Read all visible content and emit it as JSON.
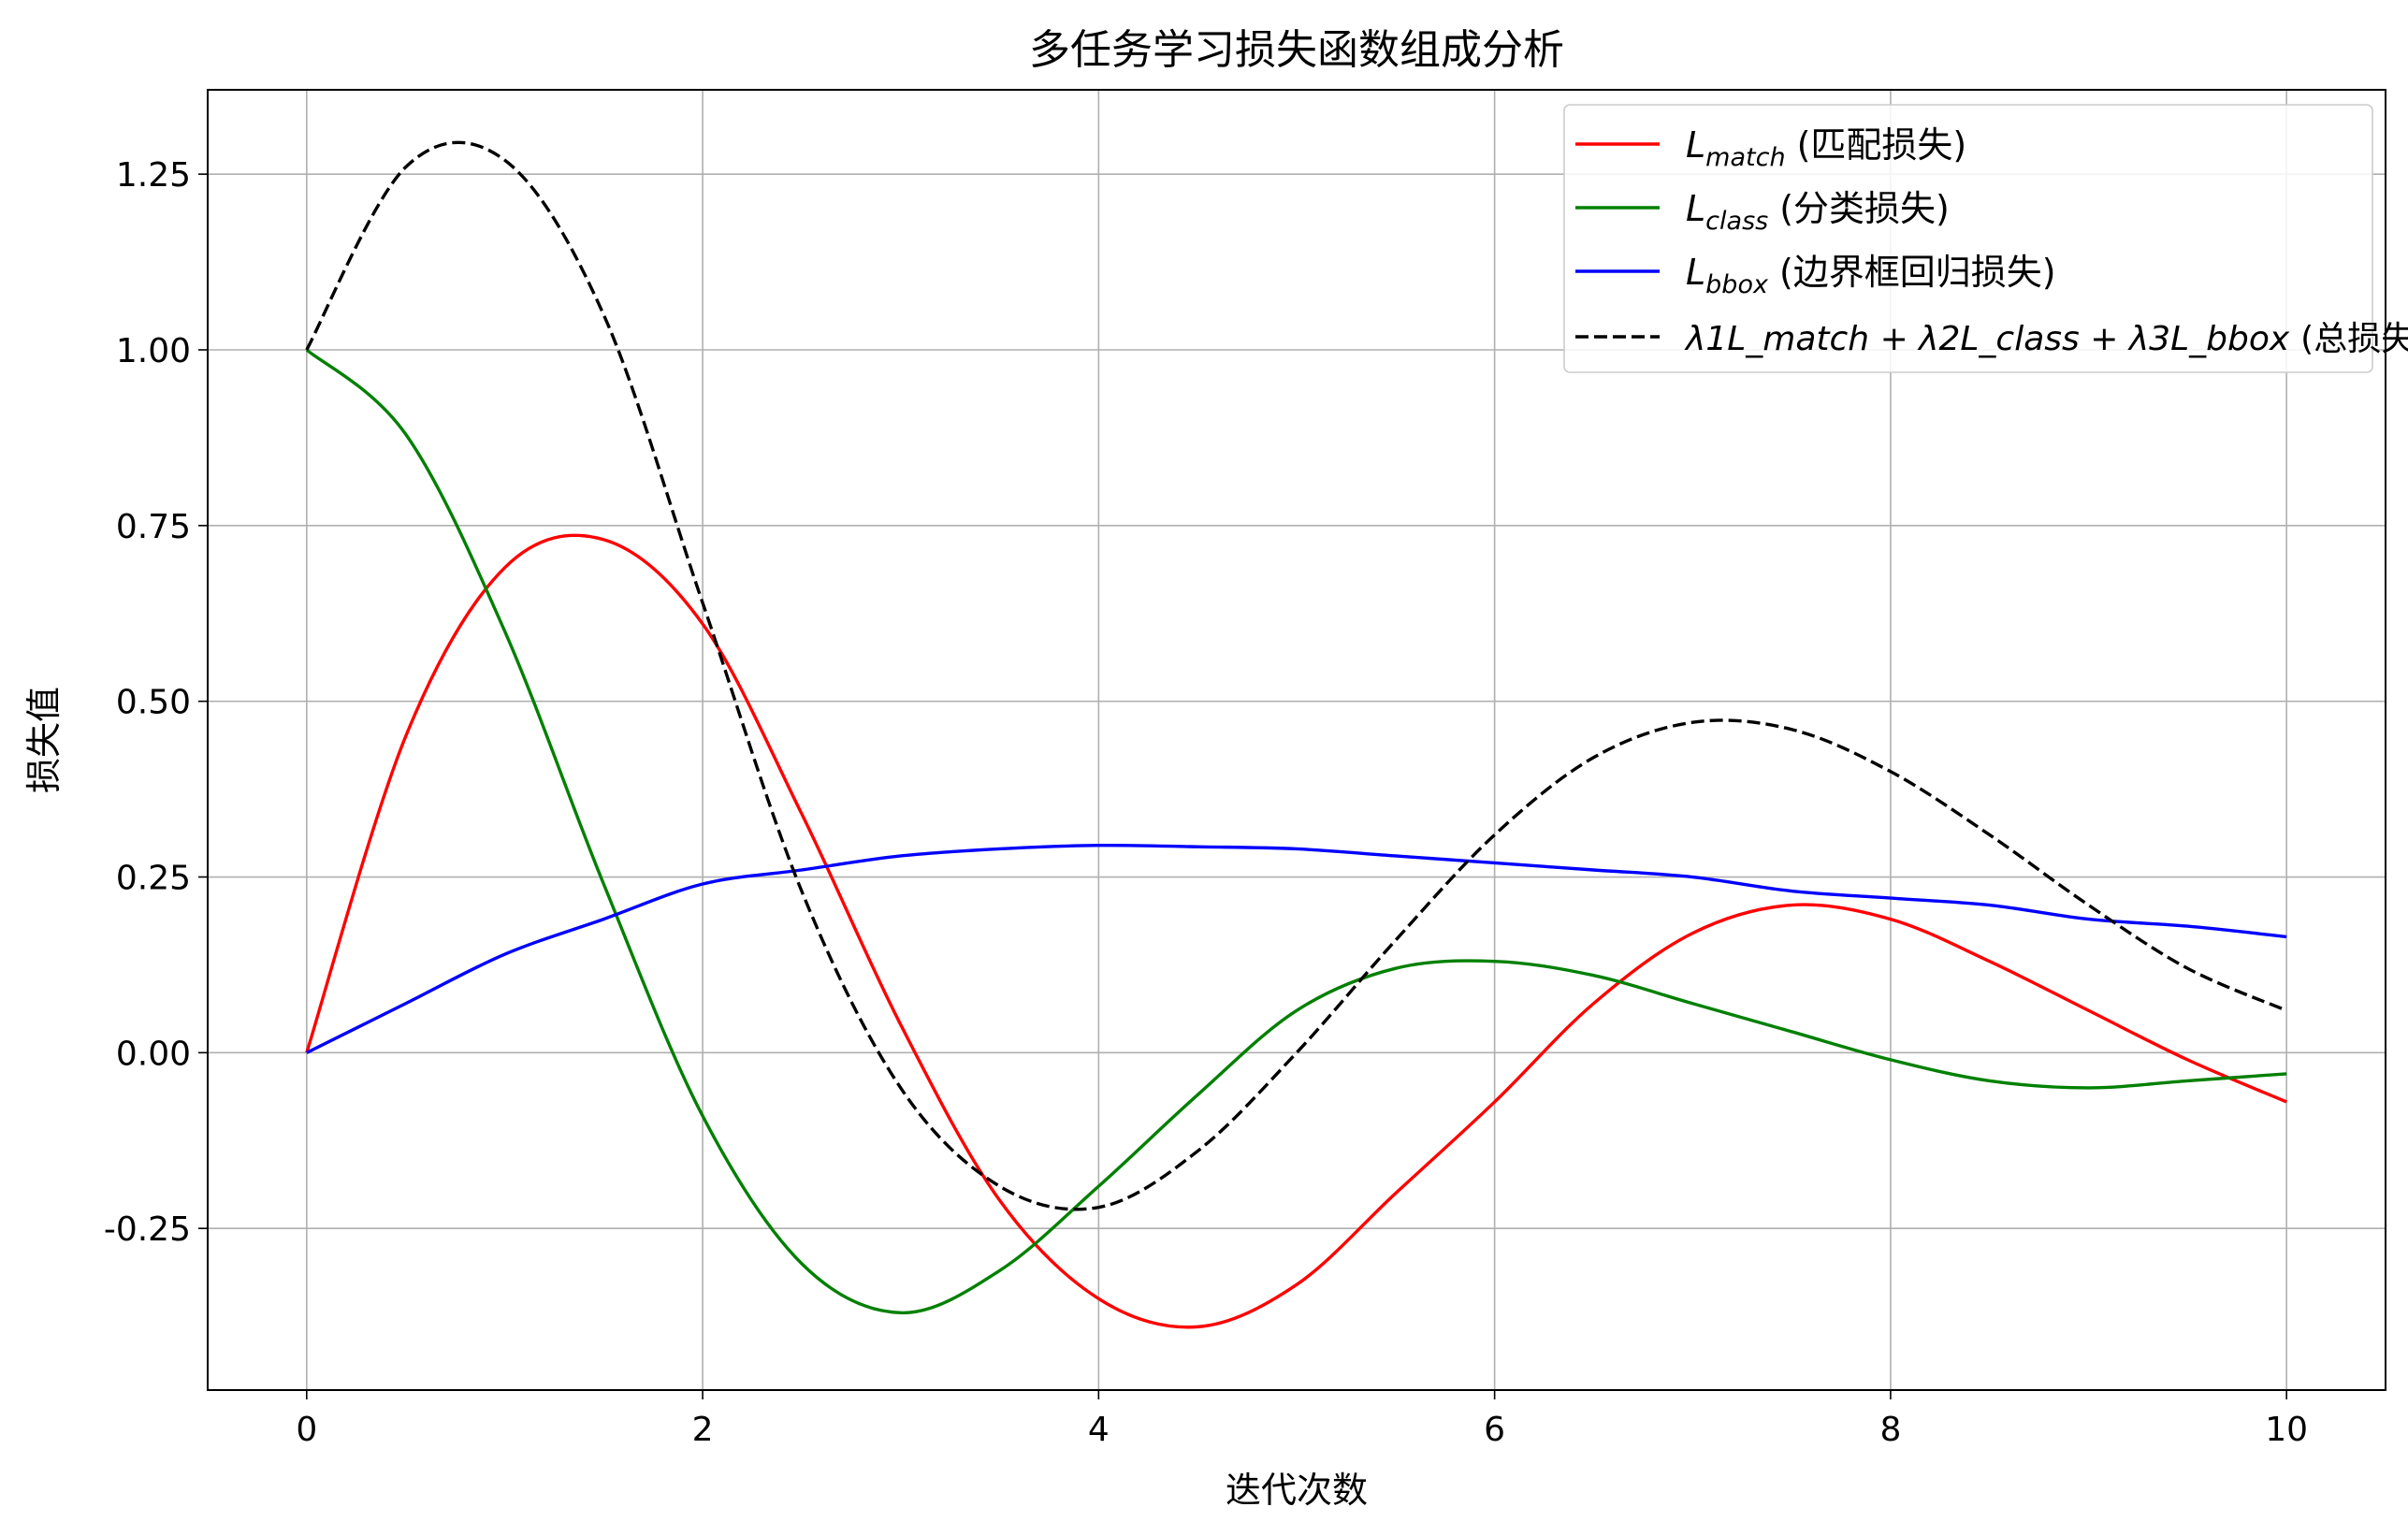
{
  "chart_data": {
    "type": "line",
    "title": "多任务学习损失函数组成分析",
    "xlabel": "迭代次数",
    "ylabel": "损失值",
    "xlim": [
      -0.5,
      10.5
    ],
    "ylim": [
      -0.48,
      1.37
    ],
    "xticks": [
      0,
      2,
      4,
      6,
      8,
      10
    ],
    "xtick_labels": [
      "0",
      "2",
      "4",
      "6",
      "8",
      "10"
    ],
    "yticks": [
      -0.25,
      0.0,
      0.25,
      0.5,
      0.75,
      1.0,
      1.25
    ],
    "ytick_labels": [
      "-0.25",
      "0.00",
      "0.25",
      "0.50",
      "0.75",
      "1.00",
      "1.25"
    ],
    "grid": true,
    "legend_position": "top-right",
    "x": [
      0,
      0.5,
      1,
      1.5,
      2,
      2.5,
      3,
      3.5,
      4,
      4.5,
      5,
      5.5,
      6,
      6.5,
      7,
      7.5,
      8,
      8.5,
      9,
      9.5,
      10
    ],
    "series": [
      {
        "name": "L_match",
        "legend_main": "L",
        "legend_sub": "match",
        "legend_suffix": "(匹配损失)",
        "color": "#ff0000",
        "dash": "solid",
        "values": [
          0.0,
          0.45,
          0.69,
          0.73,
          0.61,
          0.34,
          0.04,
          -0.21,
          -0.35,
          -0.39,
          -0.33,
          -0.2,
          -0.07,
          0.07,
          0.17,
          0.21,
          0.19,
          0.13,
          0.06,
          -0.01,
          -0.07
        ]
      },
      {
        "name": "L_class",
        "legend_main": "L",
        "legend_sub": "class",
        "legend_suffix": "(分类损失)",
        "color": "#008000",
        "dash": "solid",
        "values": [
          1.0,
          0.88,
          0.6,
          0.24,
          -0.09,
          -0.3,
          -0.37,
          -0.31,
          -0.19,
          -0.06,
          0.06,
          0.12,
          0.13,
          0.11,
          0.07,
          0.03,
          -0.01,
          -0.04,
          -0.05,
          -0.04,
          -0.03
        ]
      },
      {
        "name": "L_bbox",
        "legend_main": "L",
        "legend_sub": "bbox",
        "legend_suffix": "(边界框回归损失)",
        "color": "#0000ff",
        "dash": "solid",
        "values": [
          0.0,
          0.07,
          0.14,
          0.19,
          0.24,
          0.26,
          0.28,
          0.29,
          0.295,
          0.293,
          0.29,
          0.28,
          0.27,
          0.26,
          0.25,
          0.23,
          0.22,
          0.21,
          0.19,
          0.18,
          0.165
        ]
      },
      {
        "name": "λ1L_match + λ2L_class + λ3L_bbox",
        "legend_suffix": "(总损失)",
        "color": "#000000",
        "dash": "dashed",
        "values": [
          1.0,
          1.26,
          1.27,
          1.05,
          0.64,
          0.23,
          -0.05,
          -0.19,
          -0.22,
          -0.14,
          -0.0,
          0.16,
          0.31,
          0.42,
          0.47,
          0.46,
          0.4,
          0.31,
          0.21,
          0.12,
          0.06
        ]
      }
    ]
  }
}
